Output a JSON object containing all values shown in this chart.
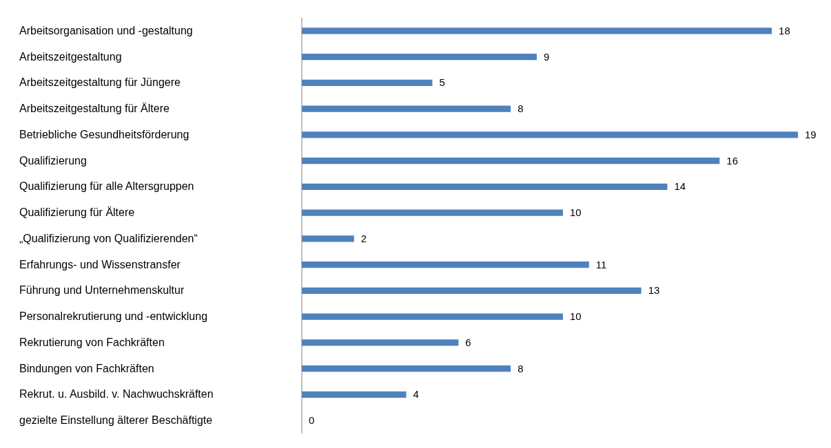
{
  "chart_data": {
    "type": "bar",
    "orientation": "horizontal",
    "categories": [
      "Arbeitsorganisation und -gestaltung",
      "Arbeitszeitgestaltung",
      "Arbeitszeitgestaltung für Jüngere",
      "Arbeitszeitgestaltung für Ältere",
      "Betriebliche Gesundheitsförderung",
      "Qualifizierung",
      "Qualifizierung für alle Altersgruppen",
      "Qualifizierung für Ältere",
      "„Qualifizierung von Qualifizierenden“",
      "Erfahrungs- und Wissenstransfer",
      "Führung und Unternehmenskultur",
      "Personalrekrutierung und -entwicklung",
      "Rekrutierung von Fachkräften",
      "Bindungen von Fachkräften",
      "Rekrut. u. Ausbild. v. Nachwuchskräften",
      "gezielte Einstellung älterer Beschäftigte"
    ],
    "values": [
      18,
      9,
      5,
      8,
      19,
      16,
      14,
      10,
      2,
      11,
      13,
      10,
      6,
      8,
      4,
      0
    ],
    "color": "#4f81bd",
    "data_labels": true,
    "grid": false,
    "legend": false
  }
}
